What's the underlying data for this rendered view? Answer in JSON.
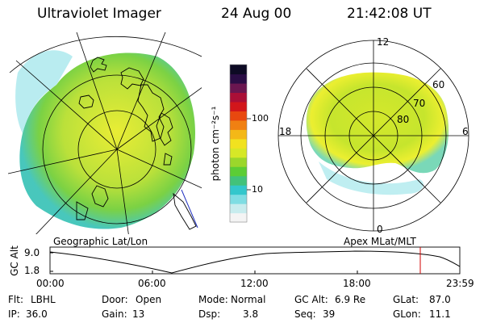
{
  "header": {
    "title": "Ultraviolet Imager",
    "date": "24 Aug 00",
    "time": "21:42:08 UT"
  },
  "colorbar": {
    "unit_label": "photon cm⁻²s⁻¹",
    "ticks": [
      "100",
      "10"
    ],
    "scale": "log",
    "colors": [
      "#f4f4f4",
      "#c8ecee",
      "#7fdde3",
      "#33c7cc",
      "#42c27a",
      "#5ccd35",
      "#9bd72b",
      "#d6e827",
      "#f1e21f",
      "#f4b817",
      "#f08012",
      "#e8480f",
      "#d2161b",
      "#aa0f37",
      "#6a1650",
      "#2a0d45",
      "#0d0a24"
    ]
  },
  "left_panel": {
    "caption": "Geographic Lat/Lon"
  },
  "right_panel": {
    "caption": "Apex MLat/MLT",
    "mlt_labels": {
      "top": "12",
      "left": "18",
      "right": "6",
      "bottom": "0"
    },
    "lat_labels": [
      "60",
      "70",
      "80"
    ]
  },
  "timeline": {
    "ylabel": "GC Alt",
    "yticks": [
      "9.0",
      "1.8"
    ],
    "xticks": [
      "00:00",
      "06:00",
      "12:00",
      "18:00",
      "23:59"
    ],
    "marker_time": "21:42",
    "marker_color": "#d00000"
  },
  "status": {
    "row1": [
      {
        "label": "Flt:",
        "value": "LBHL"
      },
      {
        "label": "Door:",
        "value": "Open"
      },
      {
        "label": "Mode:",
        "value": "Normal"
      },
      {
        "label": "GC Alt:",
        "value": "6.9 Re"
      },
      {
        "label": "GLat:",
        "value": "87.0"
      }
    ],
    "row2": [
      {
        "label": "IP:",
        "value": "36.0"
      },
      {
        "label": "Gain:",
        "value": "13"
      },
      {
        "label": "Dsp:",
        "value": "3.8"
      },
      {
        "label": "Seq:",
        "value": "39"
      },
      {
        "label": "GLon:",
        "value": "11.1"
      }
    ]
  }
}
